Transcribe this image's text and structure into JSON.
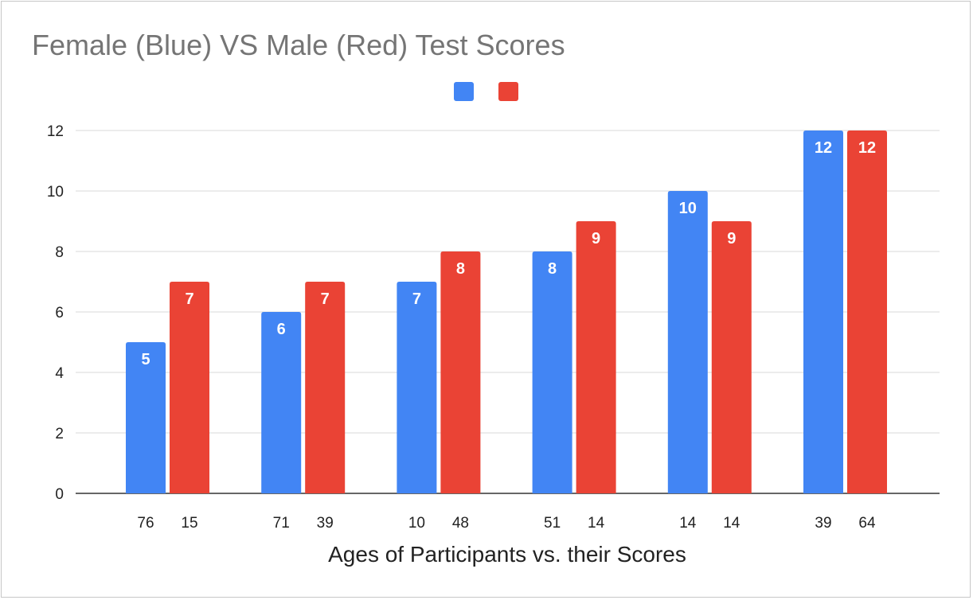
{
  "chart_data": {
    "type": "bar",
    "title": "Female (Blue) VS Male (Red) Test Scores",
    "xlabel": "Ages of Participants vs. their Scores",
    "ylabel": "",
    "ylim": [
      0,
      12
    ],
    "yticks": [
      0,
      2,
      4,
      6,
      8,
      10,
      12
    ],
    "grid": true,
    "legend": "top-center",
    "series": [
      {
        "color": "#4285f4",
        "ages": [
          "76",
          "71",
          "10",
          "51",
          "14",
          "39"
        ],
        "values": [
          5,
          6,
          7,
          8,
          10,
          12
        ]
      },
      {
        "color": "#ea4335",
        "ages": [
          "15",
          "39",
          "48",
          "14",
          "14",
          "64"
        ],
        "values": [
          7,
          7,
          8,
          9,
          9,
          12
        ]
      }
    ]
  }
}
